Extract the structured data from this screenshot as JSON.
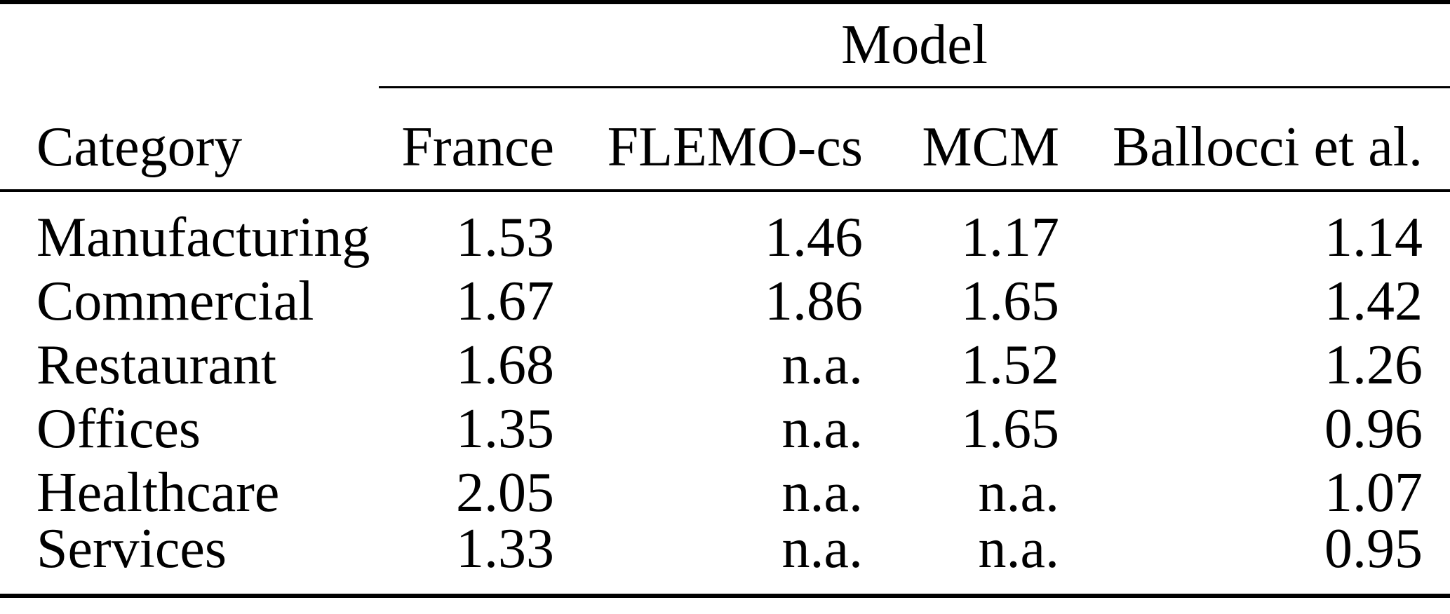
{
  "page": {
    "background_color": "#ffffff",
    "text_color": "#000000"
  },
  "table": {
    "group_header": "Model",
    "columns": [
      "Category",
      "France",
      "FLEMO-cs",
      "MCM",
      "Ballocci et al."
    ],
    "na_label": "n.a.",
    "rows": [
      {
        "category": "Manufacturing",
        "values": [
          "1.53",
          "1.46",
          "1.17",
          "1.14"
        ]
      },
      {
        "category": "Commercial",
        "values": [
          "1.67",
          "1.86",
          "1.65",
          "1.42"
        ]
      },
      {
        "category": "Restaurant",
        "values": [
          "1.68",
          "n.a.",
          "1.52",
          "1.26"
        ]
      },
      {
        "category": "Offices",
        "values": [
          "1.35",
          "n.a.",
          "1.65",
          "0.96"
        ]
      },
      {
        "category": "Healthcare",
        "values": [
          "2.05",
          "n.a.",
          "n.a.",
          "1.07"
        ]
      },
      {
        "category": "Services",
        "values": [
          "1.33",
          "n.a.",
          "n.a.",
          "0.95"
        ]
      }
    ]
  }
}
